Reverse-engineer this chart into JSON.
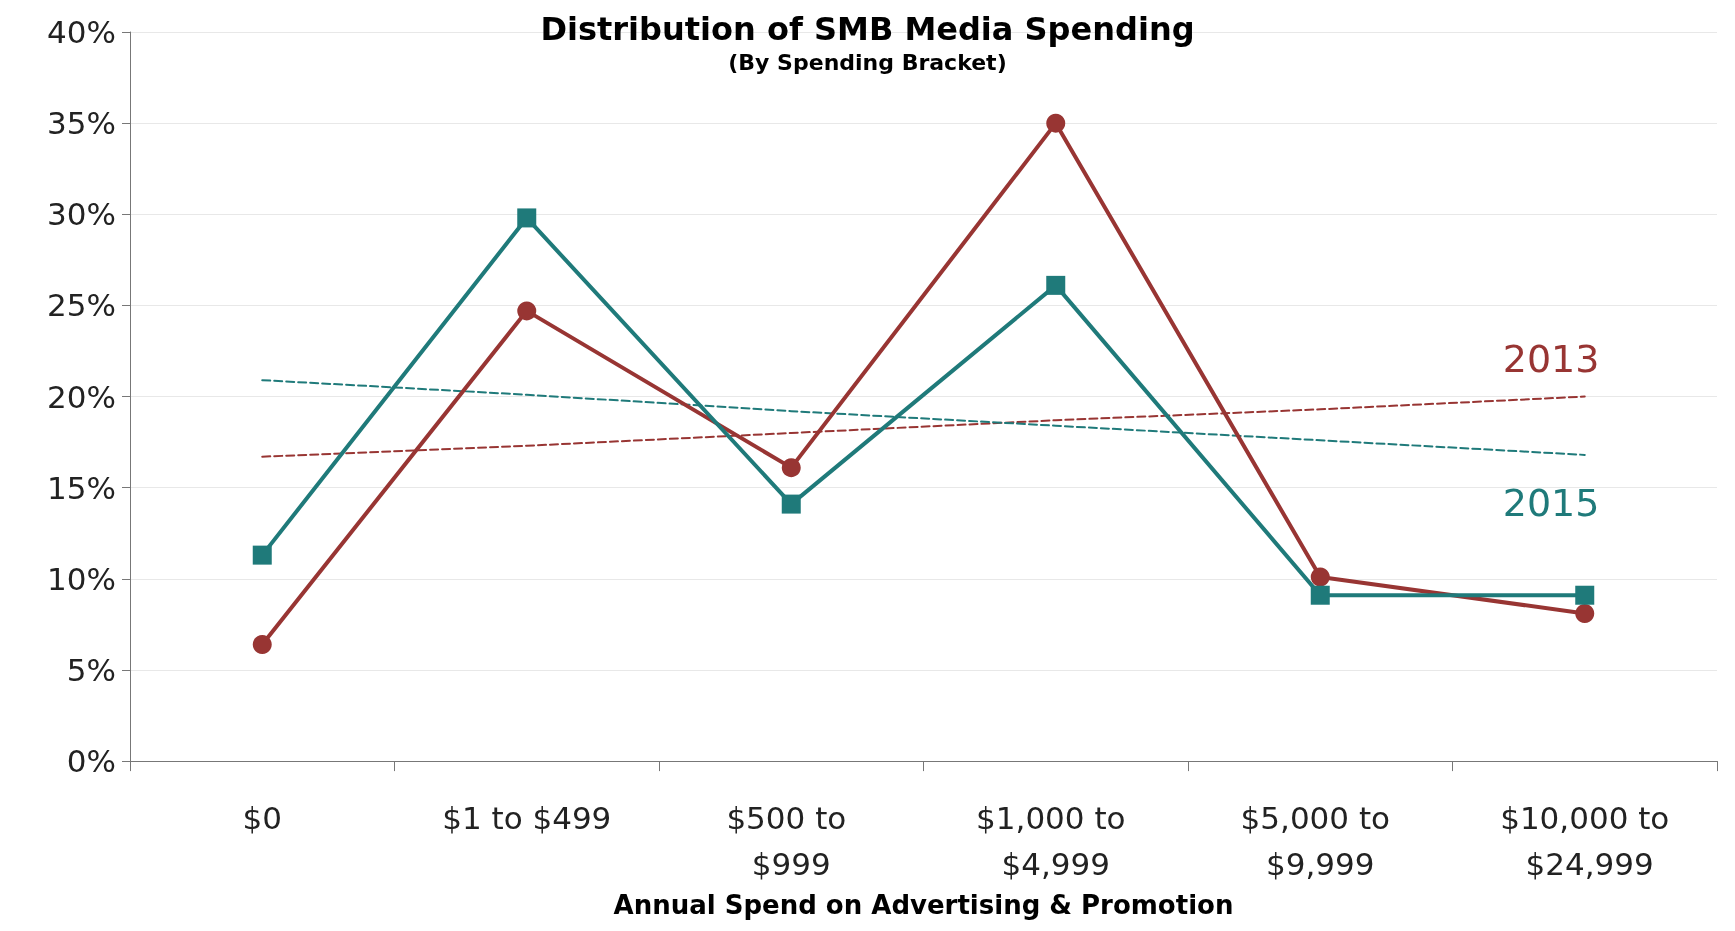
{
  "chart_data": {
    "type": "line",
    "title": "Distribution of SMB Media Spending",
    "subtitle": "(By Spending Bracket)",
    "xlabel": "Annual Spend on Advertising & Promotion",
    "categories": [
      "$0",
      "$1 to $499",
      "$500 to $999",
      "$1,000 to $4,999",
      "$5,000 to $9,999",
      "$10,000 to $24,999"
    ],
    "series": [
      {
        "color": "#983533",
        "marker": "circle",
        "line_style": "solid",
        "values": [
          6.4,
          24.7,
          16.1,
          35.0,
          10.1,
          8.1
        ]
      },
      {
        "color": "#1f7a7a",
        "marker": "square",
        "line_style": "solid",
        "values": [
          11.3,
          29.8,
          14.1,
          26.1,
          9.1,
          9.1
        ]
      },
      {
        "name": "2013",
        "color": "#983533",
        "marker": "none",
        "line_style": "dashed",
        "values": [
          16.7,
          17.3,
          18.0,
          18.7,
          19.3,
          20.0
        ]
      },
      {
        "name": "2015",
        "color": "#1f7a7a",
        "marker": "none",
        "line_style": "dashed",
        "values": [
          20.9,
          20.1,
          19.2,
          18.4,
          17.6,
          16.8
        ]
      }
    ],
    "ylim": [
      0,
      40
    ],
    "yticks": [
      {
        "value": 0,
        "label": "0%"
      },
      {
        "value": 5,
        "label": "5%"
      },
      {
        "value": 10,
        "label": "10%"
      },
      {
        "value": 15,
        "label": "15%"
      },
      {
        "value": 20,
        "label": "20%"
      },
      {
        "value": 25,
        "label": "25%"
      },
      {
        "value": 30,
        "label": "30%"
      },
      {
        "value": 35,
        "label": "35%"
      },
      {
        "value": 40,
        "label": "40%"
      }
    ],
    "grid": "y",
    "legend": false
  }
}
